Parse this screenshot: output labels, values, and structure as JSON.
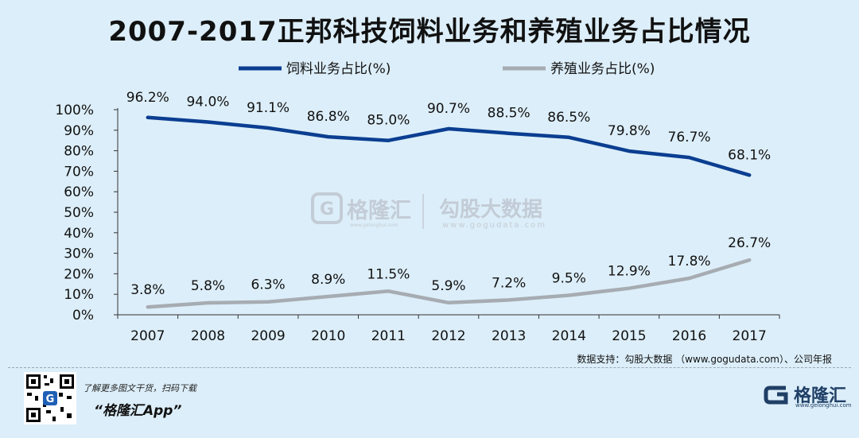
{
  "chart_data": {
    "type": "line",
    "title": "2007-2017正邦科技饲料业务和养殖业务占比情况",
    "categories": [
      "2007",
      "2008",
      "2009",
      "2010",
      "2011",
      "2012",
      "2013",
      "2014",
      "2015",
      "2016",
      "2017"
    ],
    "series": [
      {
        "name": "饲料业务占比(%)",
        "color": "#0b3e91",
        "values": [
          96.2,
          94.0,
          91.1,
          86.8,
          85.0,
          90.7,
          88.5,
          86.5,
          79.8,
          76.7,
          68.1
        ],
        "labels": [
          "96.2%",
          "94.0%",
          "91.1%",
          "86.8%",
          "85.0%",
          "90.7%",
          "88.5%",
          "86.5%",
          "79.8%",
          "76.7%",
          "68.1%"
        ]
      },
      {
        "name": "养殖业务占比(%)",
        "color": "#a6acb2",
        "values": [
          3.8,
          5.8,
          6.3,
          8.9,
          11.5,
          5.9,
          7.2,
          9.5,
          12.9,
          17.8,
          26.7
        ],
        "labels": [
          "3.8%",
          "5.8%",
          "6.3%",
          "8.9%",
          "11.5%",
          "5.9%",
          "7.2%",
          "9.5%",
          "12.9%",
          "17.8%",
          "26.7%"
        ]
      }
    ],
    "ylim": [
      0,
      100
    ],
    "yticks": [
      "0%",
      "10%",
      "20%",
      "30%",
      "40%",
      "50%",
      "60%",
      "70%",
      "80%",
      "90%",
      "100%"
    ],
    "legend_position": "top-center",
    "grid": false
  },
  "source_note": "数据支持：勾股大数据 （www.gogudata.com）、公司年报",
  "watermark": {
    "brand": "格隆汇",
    "brand_url": "www.gelonghui.com",
    "partner": "勾股大数据",
    "partner_url": "www.gogudata.com"
  },
  "footer": {
    "promo_line": "了解更多图文干货，扫码下载",
    "app_name": "“格隆汇App”",
    "logo_text": "格隆汇",
    "logo_sub": "www.gelonghui.com"
  }
}
